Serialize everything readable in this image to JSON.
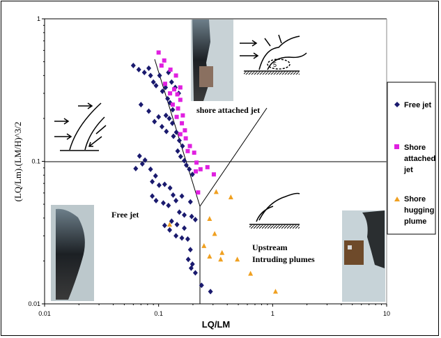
{
  "chart_data": {
    "type": "scatter",
    "x_scale": "log",
    "y_scale": "log",
    "xlim": [
      0.01,
      10
    ],
    "ylim": [
      0.01,
      1
    ],
    "xlabel": "LQ/LM",
    "ylabel": "(LQ/Lm).(LM/H)^3/2",
    "x_tick_labels": [
      "0.01",
      "0.1",
      "1",
      "10"
    ],
    "y_tick_labels": [
      "0.01",
      "0.1",
      "1"
    ],
    "grid": "horizontal major",
    "legend_position": "right",
    "series": [
      {
        "name": "Free jet",
        "color": "#1a1a6e",
        "marker": "diamond",
        "points": [
          [
            0.06,
            0.47
          ],
          [
            0.067,
            0.44
          ],
          [
            0.075,
            0.42
          ],
          [
            0.082,
            0.45
          ],
          [
            0.085,
            0.4
          ],
          [
            0.09,
            0.36
          ],
          [
            0.095,
            0.34
          ],
          [
            0.102,
            0.4
          ],
          [
            0.108,
            0.31
          ],
          [
            0.115,
            0.33
          ],
          [
            0.122,
            0.42
          ],
          [
            0.13,
            0.36
          ],
          [
            0.14,
            0.33
          ],
          [
            0.15,
            0.3
          ],
          [
            0.12,
            0.275
          ],
          [
            0.126,
            0.258
          ],
          [
            0.133,
            0.23
          ],
          [
            0.116,
            0.21
          ],
          [
            0.124,
            0.2
          ],
          [
            0.132,
            0.185
          ],
          [
            0.07,
            0.25
          ],
          [
            0.082,
            0.225
          ],
          [
            0.092,
            0.19
          ],
          [
            0.1,
            0.205
          ],
          [
            0.107,
            0.175
          ],
          [
            0.117,
            0.162
          ],
          [
            0.143,
            0.16
          ],
          [
            0.135,
            0.15
          ],
          [
            0.152,
            0.14
          ],
          [
            0.162,
            0.128
          ],
          [
            0.147,
            0.118
          ],
          [
            0.156,
            0.108
          ],
          [
            0.168,
            0.101
          ],
          [
            0.175,
            0.094
          ],
          [
            0.186,
            0.088
          ],
          [
            0.198,
            0.081
          ],
          [
            0.068,
            0.109
          ],
          [
            0.076,
            0.102
          ],
          [
            0.072,
            0.096
          ],
          [
            0.063,
            0.089
          ],
          [
            0.085,
            0.088
          ],
          [
            0.094,
            0.079
          ],
          [
            0.088,
            0.072
          ],
          [
            0.101,
            0.068
          ],
          [
            0.113,
            0.069
          ],
          [
            0.126,
            0.065
          ],
          [
            0.134,
            0.058
          ],
          [
            0.088,
            0.057
          ],
          [
            0.095,
            0.053
          ],
          [
            0.11,
            0.051
          ],
          [
            0.122,
            0.049
          ],
          [
            0.142,
            0.053
          ],
          [
            0.16,
            0.057
          ],
          [
            0.19,
            0.052
          ],
          [
            0.152,
            0.044
          ],
          [
            0.168,
            0.042
          ],
          [
            0.195,
            0.041
          ],
          [
            0.21,
            0.039
          ],
          [
            0.13,
            0.038
          ],
          [
            0.145,
            0.036
          ],
          [
            0.168,
            0.034
          ],
          [
            0.18,
            0.0285
          ],
          [
            0.16,
            0.029
          ],
          [
            0.142,
            0.03
          ],
          [
            0.125,
            0.033
          ],
          [
            0.113,
            0.0355
          ],
          [
            0.19,
            0.024
          ],
          [
            0.182,
            0.0205
          ],
          [
            0.193,
            0.0178
          ],
          [
            0.21,
            0.0165
          ],
          [
            0.198,
            0.019
          ],
          [
            0.238,
            0.0135
          ],
          [
            0.285,
            0.0122
          ]
        ]
      },
      {
        "name": "Shore attached jet",
        "color": "#e020e0",
        "marker": "square",
        "points": [
          [
            0.1,
            0.58
          ],
          [
            0.112,
            0.51
          ],
          [
            0.106,
            0.47
          ],
          [
            0.127,
            0.44
          ],
          [
            0.142,
            0.4
          ],
          [
            0.114,
            0.35
          ],
          [
            0.137,
            0.32
          ],
          [
            0.126,
            0.3
          ],
          [
            0.155,
            0.33
          ],
          [
            0.146,
            0.295
          ],
          [
            0.155,
            0.27
          ],
          [
            0.133,
            0.25
          ],
          [
            0.148,
            0.235
          ],
          [
            0.163,
            0.21
          ],
          [
            0.144,
            0.205
          ],
          [
            0.16,
            0.185
          ],
          [
            0.17,
            0.165
          ],
          [
            0.155,
            0.155
          ],
          [
            0.173,
            0.145
          ],
          [
            0.188,
            0.128
          ],
          [
            0.18,
            0.118
          ],
          [
            0.205,
            0.115
          ],
          [
            0.215,
            0.098
          ],
          [
            0.212,
            0.085
          ],
          [
            0.233,
            0.088
          ],
          [
            0.268,
            0.091
          ],
          [
            0.305,
            0.081
          ],
          [
            0.222,
            0.0605
          ]
        ]
      },
      {
        "name": "Shore hugging plume",
        "color": "#f0a020",
        "marker": "triangle",
        "points": [
          [
            0.32,
            0.061
          ],
          [
            0.43,
            0.056
          ],
          [
            0.125,
            0.036
          ],
          [
            0.28,
            0.0395
          ],
          [
            0.31,
            0.031
          ],
          [
            0.25,
            0.0255
          ],
          [
            0.36,
            0.0228
          ],
          [
            0.28,
            0.0215
          ],
          [
            0.35,
            0.0205
          ],
          [
            0.49,
            0.0205
          ],
          [
            0.64,
            0.0163
          ],
          [
            1.06,
            0.0122
          ]
        ]
      }
    ],
    "region_labels": [
      "shore attached jet",
      "Free jet",
      "Upstream",
      "Intruding plumes"
    ]
  }
}
